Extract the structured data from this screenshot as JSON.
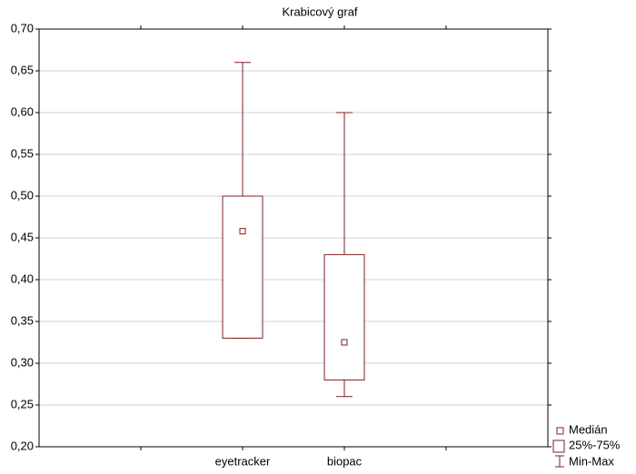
{
  "chart_data": {
    "type": "box",
    "title": "Krabicový graf",
    "categories": [
      "eyetracker",
      "biopac"
    ],
    "min": [
      0.33,
      0.26
    ],
    "q1": [
      0.33,
      0.28
    ],
    "median": [
      0.458,
      0.325
    ],
    "q3": [
      0.5,
      0.43
    ],
    "max": [
      0.66,
      0.6
    ],
    "color": "#7f1f1f",
    "ylim": [
      0.2,
      0.7
    ],
    "yticks": [
      {
        "value": 0.2,
        "label": "0,20"
      },
      {
        "value": 0.25,
        "label": "0,25"
      },
      {
        "value": 0.3,
        "label": "0,30"
      },
      {
        "value": 0.35,
        "label": "0,35"
      },
      {
        "value": 0.4,
        "label": "0,40"
      },
      {
        "value": 0.45,
        "label": "0,45"
      },
      {
        "value": 0.5,
        "label": "0,50"
      },
      {
        "value": 0.55,
        "label": "0,55"
      },
      {
        "value": 0.6,
        "label": "0,60"
      },
      {
        "value": 0.65,
        "label": "0,65"
      },
      {
        "value": 0.7,
        "label": "0,70"
      }
    ],
    "grid": true,
    "legend": [
      "Medián",
      "25%-75%",
      "Min-Max"
    ],
    "legend_position": "lower right"
  }
}
